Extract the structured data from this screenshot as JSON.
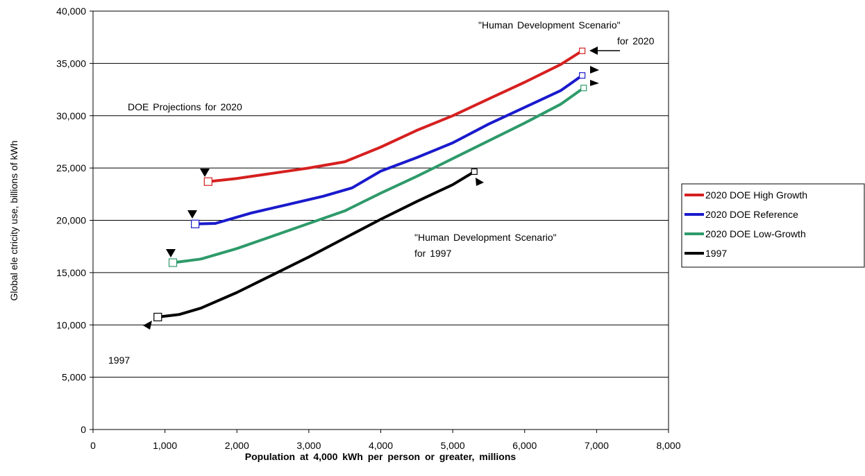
{
  "chart_data": {
    "type": "line",
    "xlabel": "Population at 4,000 kWh per person or greater, millions",
    "ylabel": "Global ele ctricity use, billions of kWh",
    "xlim": [
      0,
      8000
    ],
    "ylim": [
      0,
      40000
    ],
    "x_ticks": [
      "0",
      "1,000",
      "2,000",
      "3,000",
      "4,000",
      "5,000",
      "6,000",
      "7,000",
      "8,000"
    ],
    "y_ticks": [
      "0",
      "5,000",
      "10,000",
      "15,000",
      "20,000",
      "25,000",
      "30,000",
      "35,000",
      "40,000"
    ],
    "grid": "horizontal",
    "legend_position": "right",
    "series": [
      {
        "name": "2020 DOE High Growth",
        "color": "#d61f1f",
        "points": [
          [
            1600,
            23700
          ],
          [
            2000,
            24000
          ],
          [
            2500,
            24500
          ],
          [
            3000,
            25000
          ],
          [
            3500,
            25600
          ],
          [
            4000,
            27000
          ],
          [
            4500,
            28600
          ],
          [
            5000,
            30000
          ],
          [
            5500,
            31600
          ],
          [
            6000,
            33200
          ],
          [
            6500,
            34900
          ],
          [
            6800,
            36200
          ]
        ]
      },
      {
        "name": "2020 DOE Reference",
        "color": "#1a1acc",
        "points": [
          [
            1420,
            19650
          ],
          [
            1700,
            19700
          ],
          [
            2200,
            20700
          ],
          [
            2700,
            21500
          ],
          [
            3200,
            22300
          ],
          [
            3600,
            23100
          ],
          [
            4000,
            24700
          ],
          [
            4500,
            26000
          ],
          [
            5000,
            27400
          ],
          [
            5500,
            29200
          ],
          [
            6000,
            30800
          ],
          [
            6500,
            32400
          ],
          [
            6800,
            33850
          ]
        ]
      },
      {
        "name": "2020  DOE Low-Growth",
        "color": "#2e9a6a",
        "points": [
          [
            1110,
            15950
          ],
          [
            1500,
            16300
          ],
          [
            2000,
            17300
          ],
          [
            2500,
            18500
          ],
          [
            3000,
            19700
          ],
          [
            3500,
            20900
          ],
          [
            4000,
            22600
          ],
          [
            4500,
            24200
          ],
          [
            5000,
            25900
          ],
          [
            5500,
            27600
          ],
          [
            6000,
            29300
          ],
          [
            6500,
            31100
          ],
          [
            6820,
            32650
          ]
        ]
      },
      {
        "name": "1997",
        "color": "#000000",
        "points": [
          [
            900,
            10750
          ],
          [
            1200,
            11000
          ],
          [
            1500,
            11600
          ],
          [
            2000,
            13100
          ],
          [
            2500,
            14800
          ],
          [
            3000,
            16500
          ],
          [
            3500,
            18300
          ],
          [
            4000,
            20100
          ],
          [
            4500,
            21800
          ],
          [
            5000,
            23400
          ],
          [
            5300,
            24650
          ]
        ]
      }
    ],
    "annotations": [
      {
        "id": "hds-2020",
        "lines": [
          "\"Human Development Scenario\"",
          "for  2020"
        ]
      },
      {
        "id": "doe-2020",
        "lines": [
          "DOE  Projections for 2020"
        ]
      },
      {
        "id": "hds-1997",
        "lines": [
          "\"Human Development Scenario\"",
          "for  1997"
        ]
      },
      {
        "id": "label-1997",
        "lines": [
          "1997"
        ]
      }
    ]
  }
}
